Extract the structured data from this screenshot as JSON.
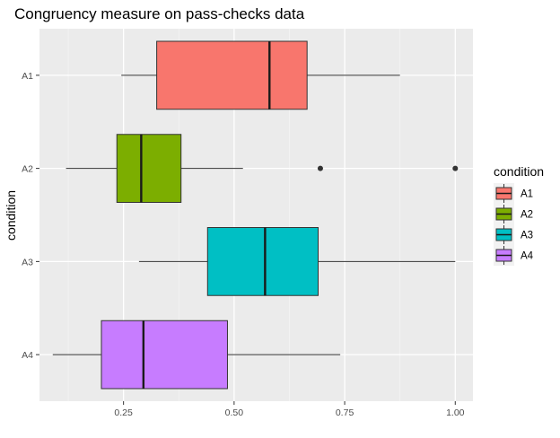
{
  "chart_data": {
    "type": "boxplot",
    "orientation": "horizontal",
    "title": "Congruency measure on pass-checks data",
    "xlabel": "",
    "ylabel": "condition",
    "xlim": [
      0.06,
      1.04
    ],
    "x_ticks": [
      0.25,
      0.5,
      0.75,
      1.0
    ],
    "x_tick_labels": [
      "0.25",
      "0.50",
      "0.75",
      "1.00"
    ],
    "categories": [
      "A1",
      "A2",
      "A3",
      "A4"
    ],
    "grid": true,
    "legend": {
      "title": "condition",
      "position": "right"
    },
    "series": [
      {
        "name": "A1",
        "color": "#F8766D",
        "whisker_low": 0.245,
        "q1": 0.325,
        "median": 0.58,
        "q3": 0.665,
        "whisker_high": 0.875,
        "outliers": []
      },
      {
        "name": "A2",
        "color": "#7CAE00",
        "whisker_low": 0.12,
        "q1": 0.235,
        "median": 0.29,
        "q3": 0.38,
        "whisker_high": 0.52,
        "outliers": [
          0.695,
          1.0
        ]
      },
      {
        "name": "A3",
        "color": "#00BFC4",
        "whisker_low": 0.285,
        "q1": 0.44,
        "median": 0.57,
        "q3": 0.69,
        "whisker_high": 1.0,
        "outliers": []
      },
      {
        "name": "A4",
        "color": "#C77CFF",
        "whisker_low": 0.09,
        "q1": 0.2,
        "median": 0.295,
        "q3": 0.485,
        "whisker_high": 0.74,
        "outliers": []
      }
    ]
  }
}
